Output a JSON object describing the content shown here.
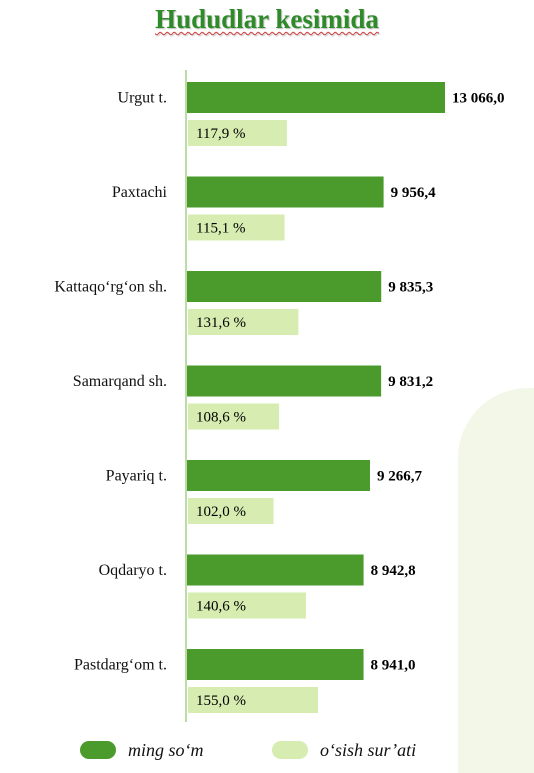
{
  "title": "Hududlar kesimida",
  "colors": {
    "primary": "#4a9a2c",
    "secondary": "#d6ecb0",
    "title": "#2f8a2a"
  },
  "chart_data": {
    "type": "bar",
    "orientation": "horizontal",
    "title": "Hududlar kesimida",
    "categories": [
      "Urgut t.",
      "Paxtachi",
      "Kattaqo‘rg‘on sh.",
      "Samarqand sh.",
      "Payariq t.",
      "Oqdaryo t.",
      "Pastdarg‘om t."
    ],
    "series": [
      {
        "name": "ming so‘m",
        "values": [
          13066.0,
          9956.4,
          9835.3,
          9831.2,
          9266.7,
          8942.8,
          8941.0
        ],
        "labels": [
          "13 066,0",
          "9 956,4",
          "9 835,3",
          "9 831,2",
          "9 266,7",
          "8 942,8",
          "8 941,0"
        ],
        "color": "#4a9a2c"
      },
      {
        "name": "o‘sish sur’ati",
        "values": [
          117.9,
          115.1,
          131.6,
          108.6,
          102.0,
          140.6,
          155.0
        ],
        "labels": [
          "117,9 %",
          "115,1 %",
          "131,6 %",
          "108,6 %",
          "102,0 %",
          "140,6 %",
          "155,0 %"
        ],
        "color": "#d6ecb0"
      }
    ],
    "legend_position": "bottom",
    "grid": false
  }
}
